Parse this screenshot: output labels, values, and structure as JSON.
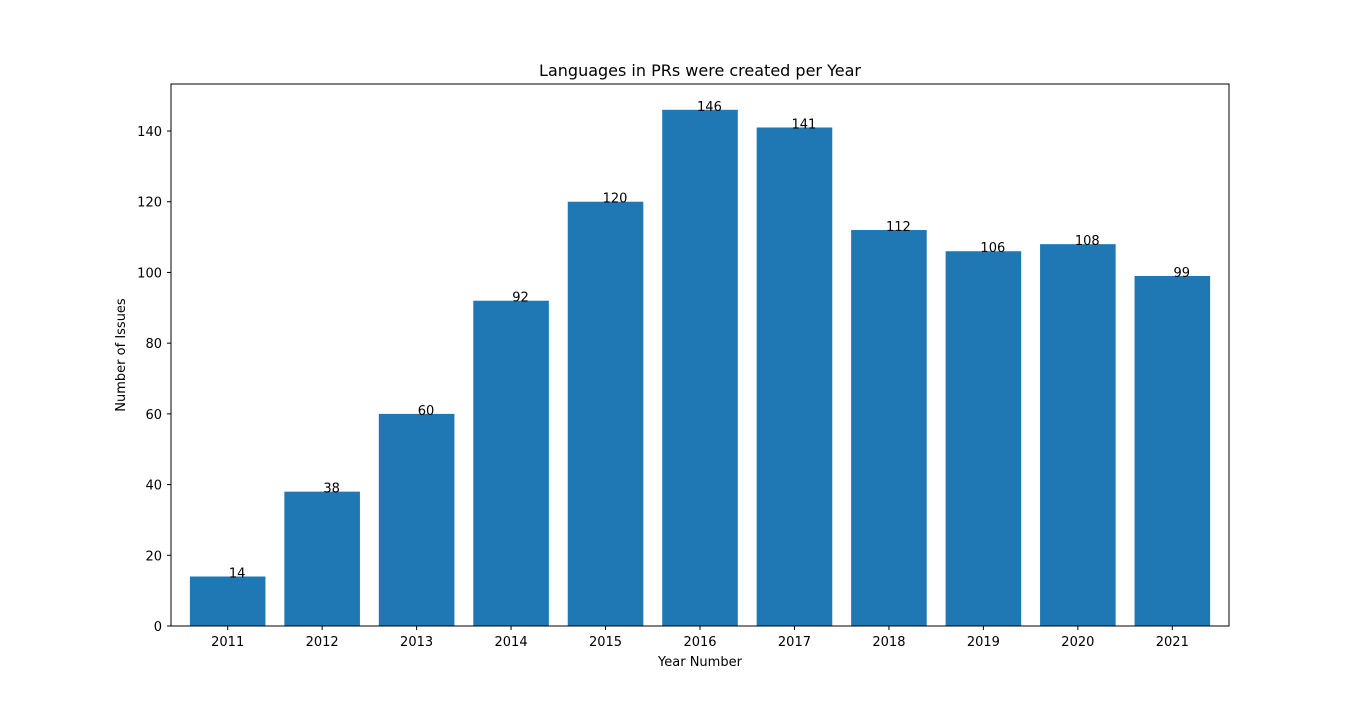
{
  "chart_data": {
    "type": "bar",
    "title": "Languages in PRs were created per Year",
    "xlabel": "Year Number",
    "ylabel": "Number of Issues",
    "categories": [
      "2011",
      "2012",
      "2013",
      "2014",
      "2015",
      "2016",
      "2017",
      "2018",
      "2019",
      "2020",
      "2021"
    ],
    "values": [
      14,
      38,
      60,
      92,
      120,
      146,
      141,
      112,
      106,
      108,
      99
    ],
    "data_labels": [
      "14",
      "38",
      "60",
      "92",
      "120",
      "146",
      "141",
      "112",
      "106",
      "108",
      "99"
    ],
    "ylim": [
      0,
      153.3
    ],
    "yticks": [
      0,
      20,
      40,
      60,
      80,
      100,
      120,
      140
    ],
    "bar_color": "#1f77b4",
    "grid": false,
    "legend": "none"
  }
}
